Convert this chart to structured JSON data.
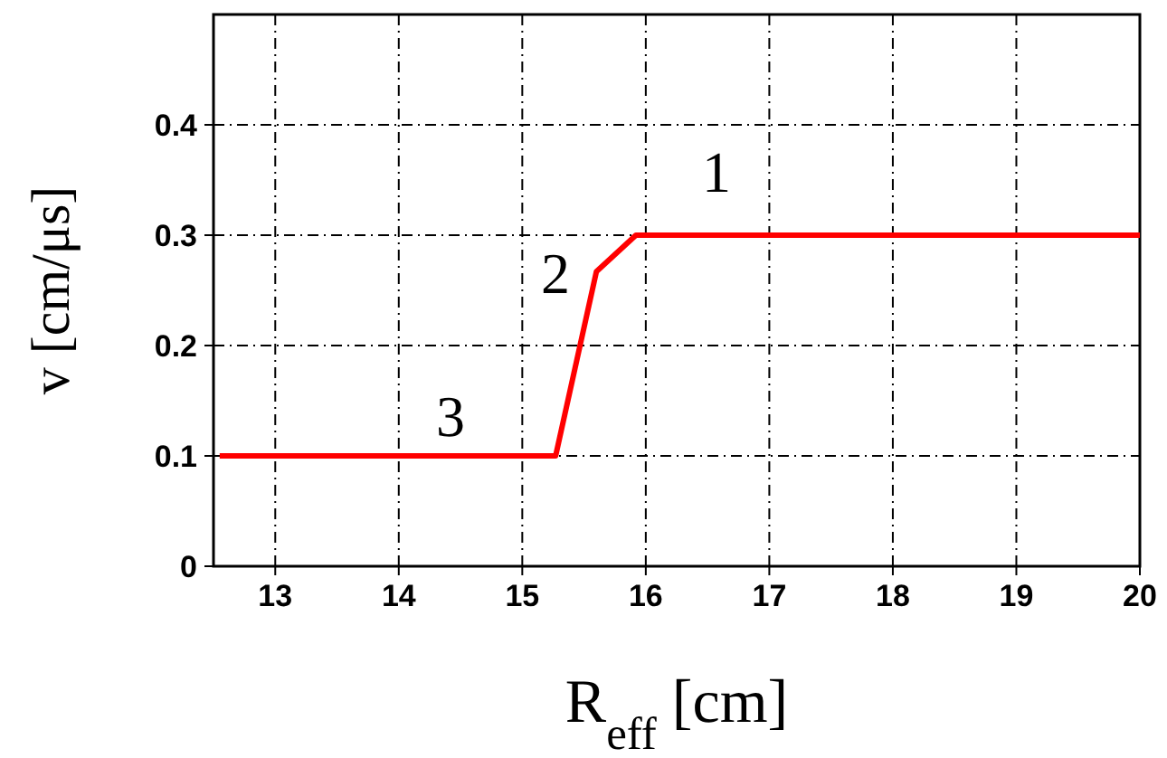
{
  "chart_data": {
    "type": "line",
    "xlabel": "R$_{eff}$ [cm]",
    "ylabel": "v [cm/μs]",
    "x": [
      12.55,
      15.27,
      15.6,
      15.92,
      20
    ],
    "series": [
      {
        "color": "#ff0000",
        "values": [
          0.1,
          0.1,
          0.267,
          0.3,
          0.3
        ]
      }
    ],
    "xlim": [
      12.5,
      20
    ],
    "xticks": [
      13,
      14,
      15,
      16,
      17,
      18,
      19,
      20
    ],
    "ylim": [
      0,
      0.5
    ],
    "yticks": [
      0,
      0.1,
      0.2,
      0.3,
      0.4
    ],
    "grid": true,
    "marker": "none",
    "line_style": "solid",
    "annotations": [
      "1",
      "2",
      "3"
    ]
  }
}
